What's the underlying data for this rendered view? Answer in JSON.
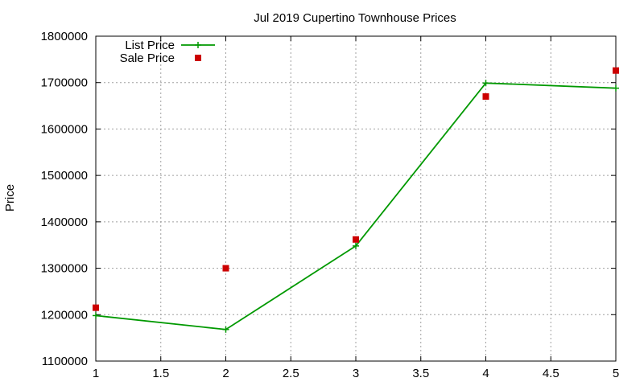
{
  "chart_data": {
    "type": "line",
    "title": "Jul 2019 Cupertino Townhouse Prices",
    "xlabel": "",
    "ylabel": "Price",
    "xlim": [
      1,
      5
    ],
    "ylim": [
      1100000,
      1800000
    ],
    "x_ticks": [
      "1",
      "1.5",
      "2",
      "2.5",
      "3",
      "3.5",
      "4",
      "4.5",
      "5"
    ],
    "y_ticks": [
      "1100000",
      "1200000",
      "1300000",
      "1400000",
      "1500000",
      "1600000",
      "1700000",
      "1800000"
    ],
    "grid": true,
    "legend_position": "top-left",
    "series": [
      {
        "name": "List Price",
        "style": "line-with-plus-markers",
        "color": "#009900",
        "x": [
          1,
          2,
          3,
          4,
          5
        ],
        "y": [
          1198000,
          1168000,
          1348000,
          1699000,
          1688000
        ]
      },
      {
        "name": "Sale Price",
        "style": "square-markers",
        "color": "#cc0000",
        "x": [
          1,
          2,
          3,
          4,
          5
        ],
        "y": [
          1215000,
          1300000,
          1362000,
          1670000,
          1726000
        ]
      }
    ]
  }
}
